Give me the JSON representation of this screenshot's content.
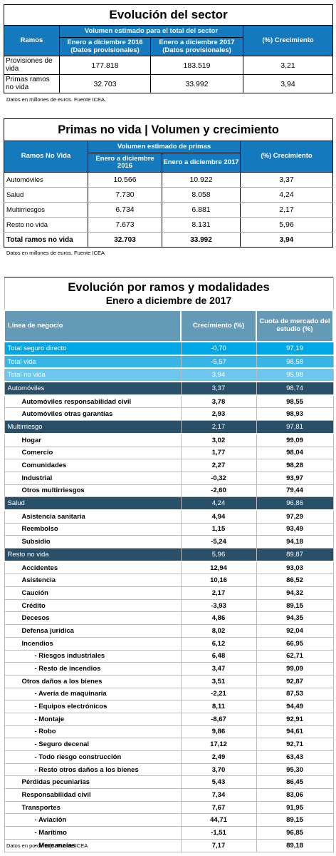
{
  "table1": {
    "title": "Evolución del sector",
    "col_ramos": "Ramos",
    "col_volumen": "Volumen estimado para el total del sector",
    "col_2016": "Enero a diciembre 2016 (Datos provisionales)",
    "col_2017": "Enero a diciembre 2017 (Datos provisionales)",
    "col_crec": "(%) Crecimiento",
    "rows": [
      {
        "name": "Provisiones de vida",
        "v2016": "177.818",
        "v2017": "183.519",
        "crec": "3,21"
      },
      {
        "name": "Primas ramos no vida",
        "v2016": "32.703",
        "v2017": "33.992",
        "crec": "3,94"
      }
    ],
    "source": "Datos en millones de euros. Fuente ICEA."
  },
  "table2": {
    "title": "Primas no vida | Volumen y crecimiento",
    "col_ramos": "Ramos No Vida",
    "col_volumen": "Volumen estimado de primas",
    "col_2016": "Enero a diciembre 2016",
    "col_2017": "Enero a diciembre 2017",
    "col_crec": "(%) Crecimiento",
    "rows": [
      {
        "name": "Automóviles",
        "v2016": "10.566",
        "v2017": "10.922",
        "crec": "3,37"
      },
      {
        "name": "Salud",
        "v2016": "7.730",
        "v2017": "8.058",
        "crec": "4,24"
      },
      {
        "name": "Multirriesgos",
        "v2016": "6.734",
        "v2017": "6.881",
        "crec": "2,17"
      },
      {
        "name": "Resto no vida",
        "v2016": "7.673",
        "v2017": "8.131",
        "crec": "5,96"
      }
    ],
    "total": {
      "name": "Total ramos no vida",
      "v2016": "32.703",
      "v2017": "33.992",
      "crec": "3,94"
    },
    "source": "Datos en millones de euros. Fuente ICEA"
  },
  "table3": {
    "title": "Evolución por ramos y modalidades",
    "subtitle": "Enero a diciembre de 2017",
    "col_linea": "Línea de negocio",
    "col_crec": "Crecimiento (%)",
    "col_cuota": "Cuota de mercado del estudio (%)",
    "rows": [
      {
        "name": "Total seguro directo",
        "crec": "-0,70",
        "cuota": "97,19",
        "style": "hl-blue1",
        "lvl": 0
      },
      {
        "name": "Total vida",
        "crec": "-5,57",
        "cuota": "98,58",
        "style": "hl-blue2",
        "lvl": 0
      },
      {
        "name": "Total no vida",
        "crec": "3,94",
        "cuota": "95,98",
        "style": "hl-blue3",
        "lvl": 0
      },
      {
        "name": "Automóviles",
        "crec": "3,37",
        "cuota": "98,74",
        "style": "hl-dark",
        "lvl": 0
      },
      {
        "name": "Automóviles responsabilidad civil",
        "crec": "3,78",
        "cuota": "98,55",
        "style": "",
        "lvl": 1
      },
      {
        "name": "Automóviles otras garantías",
        "crec": "2,93",
        "cuota": "98,93",
        "style": "",
        "lvl": 1
      },
      {
        "name": "Multirriesgo",
        "crec": "2,17",
        "cuota": "97,81",
        "style": "hl-dark",
        "lvl": 0
      },
      {
        "name": "Hogar",
        "crec": "3,02",
        "cuota": "99,09",
        "style": "",
        "lvl": 1
      },
      {
        "name": "Comercio",
        "crec": "1,77",
        "cuota": "98,04",
        "style": "",
        "lvl": 1
      },
      {
        "name": "Comunidades",
        "crec": "2,27",
        "cuota": "98,28",
        "style": "",
        "lvl": 1
      },
      {
        "name": "Industrial",
        "crec": "-0,32",
        "cuota": "93,97",
        "style": "",
        "lvl": 1
      },
      {
        "name": "Otros multirriesgos",
        "crec": "-2,60",
        "cuota": "79,44",
        "style": "",
        "lvl": 1
      },
      {
        "name": "Salud",
        "crec": "4,24",
        "cuota": "96,86",
        "style": "hl-dark",
        "lvl": 0
      },
      {
        "name": "Asistencia sanitaria",
        "crec": "4,94",
        "cuota": "97,29",
        "style": "",
        "lvl": 1
      },
      {
        "name": "Reembolso",
        "crec": "1,15",
        "cuota": "93,49",
        "style": "",
        "lvl": 1
      },
      {
        "name": "Subsidio",
        "crec": "-5,24",
        "cuota": "94,18",
        "style": "",
        "lvl": 1
      },
      {
        "name": "Resto no vida",
        "crec": "5,96",
        "cuota": "89,87",
        "style": "hl-dark",
        "lvl": 0
      },
      {
        "name": "Accidentes",
        "crec": "12,94",
        "cuota": "93,03",
        "style": "",
        "lvl": 1
      },
      {
        "name": "Asistencia",
        "crec": "10,16",
        "cuota": "86,52",
        "style": "",
        "lvl": 1
      },
      {
        "name": "Caución",
        "crec": "2,17",
        "cuota": "94,32",
        "style": "",
        "lvl": 1
      },
      {
        "name": "Crédito",
        "crec": "-3,93",
        "cuota": "89,15",
        "style": "",
        "lvl": 1
      },
      {
        "name": "Decesos",
        "crec": "4,86",
        "cuota": "94,35",
        "style": "",
        "lvl": 1
      },
      {
        "name": "Defensa jurídica",
        "crec": "8,02",
        "cuota": "92,04",
        "style": "",
        "lvl": 1
      },
      {
        "name": "Incendios",
        "crec": "6,12",
        "cuota": "66,95",
        "style": "",
        "lvl": 1
      },
      {
        "name": "- Riesgos industriales",
        "crec": "6,48",
        "cuota": "62,71",
        "style": "",
        "lvl": 2
      },
      {
        "name": "- Resto de incendios",
        "crec": "3,47",
        "cuota": "99,09",
        "style": "",
        "lvl": 2
      },
      {
        "name": "Otros daños a los bienes",
        "crec": "3,51",
        "cuota": "92,87",
        "style": "",
        "lvl": 1
      },
      {
        "name": "- Avería de maquinaria",
        "crec": "-2,21",
        "cuota": "87,53",
        "style": "",
        "lvl": 2
      },
      {
        "name": "- Equipos electrónicos",
        "crec": "8,11",
        "cuota": "94,49",
        "style": "",
        "lvl": 2
      },
      {
        "name": "- Montaje",
        "crec": "-8,67",
        "cuota": "92,91",
        "style": "",
        "lvl": 2
      },
      {
        "name": "- Robo",
        "crec": "9,86",
        "cuota": "94,61",
        "style": "",
        "lvl": 2
      },
      {
        "name": "- Seguro decenal",
        "crec": "17,12",
        "cuota": "92,71",
        "style": "",
        "lvl": 2
      },
      {
        "name": "- Todo riesgo construcción",
        "crec": "2,49",
        "cuota": "63,43",
        "style": "",
        "lvl": 2
      },
      {
        "name": "- Resto otros daños a los bienes",
        "crec": "3,70",
        "cuota": "95,30",
        "style": "",
        "lvl": 2
      },
      {
        "name": "Pérdidas pecuniarias",
        "crec": "5,43",
        "cuota": "86,45",
        "style": "",
        "lvl": 1
      },
      {
        "name": "Responsabilidad civil",
        "crec": "7,34",
        "cuota": "83,06",
        "style": "",
        "lvl": 1
      },
      {
        "name": "Transportes",
        "crec": "7,67",
        "cuota": "91,95",
        "style": "",
        "lvl": 1
      },
      {
        "name": "- Aviación",
        "crec": "44,71",
        "cuota": "89,15",
        "style": "",
        "lvl": 2
      },
      {
        "name": "- Marítimo",
        "crec": "-1,51",
        "cuota": "96,85",
        "style": "",
        "lvl": 2
      },
      {
        "name": "- Mercancías",
        "crec": "7,17",
        "cuota": "89,18",
        "style": "",
        "lvl": 2
      }
    ],
    "source": "Datos en porcentaje. Fuente ICEA"
  }
}
